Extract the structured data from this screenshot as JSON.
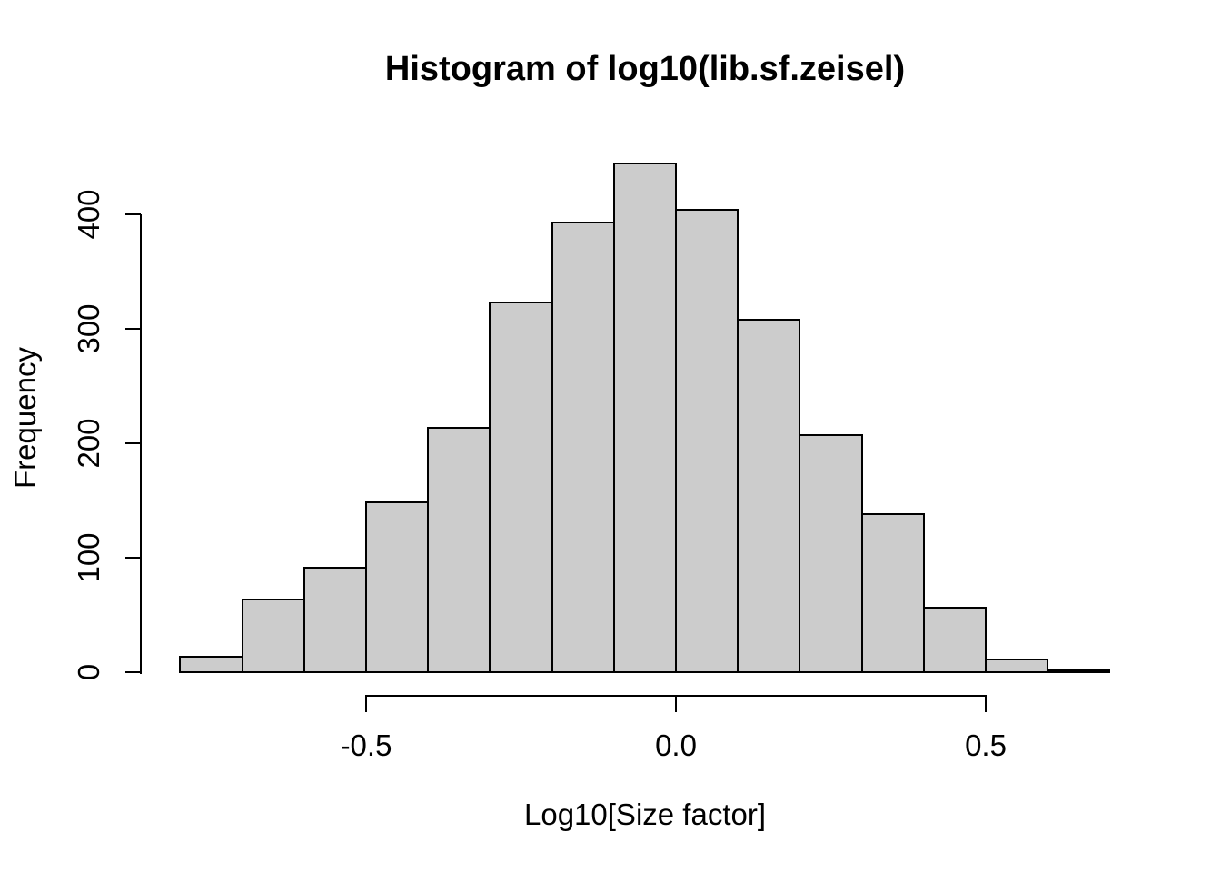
{
  "chart_data": {
    "type": "bar",
    "subtype": "histogram",
    "title": "Histogram of log10(lib.sf.zeisel)",
    "xlabel": "Log10[Size factor]",
    "ylabel": "Frequency",
    "bin_start": -0.8,
    "bin_width": 0.1,
    "counts": [
      14,
      64,
      92,
      149,
      214,
      324,
      394,
      445,
      405,
      309,
      208,
      139,
      57,
      12,
      2
    ],
    "x_ticks": [
      -0.5,
      0.0,
      0.5
    ],
    "x_tick_labels": [
      "-0.5",
      "0.0",
      "0.5"
    ],
    "y_ticks": [
      0,
      100,
      200,
      300,
      400
    ],
    "y_tick_labels": [
      "0",
      "100",
      "200",
      "300",
      "400"
    ],
    "xlim": [
      -0.86,
      0.76
    ],
    "ylim": [
      0,
      445
    ],
    "grid": false,
    "legend": null,
    "colors": {
      "bar_fill": "#cccccc",
      "bar_stroke": "#000000",
      "axis": "#000000",
      "text": "#000000",
      "background": "#ffffff"
    }
  }
}
